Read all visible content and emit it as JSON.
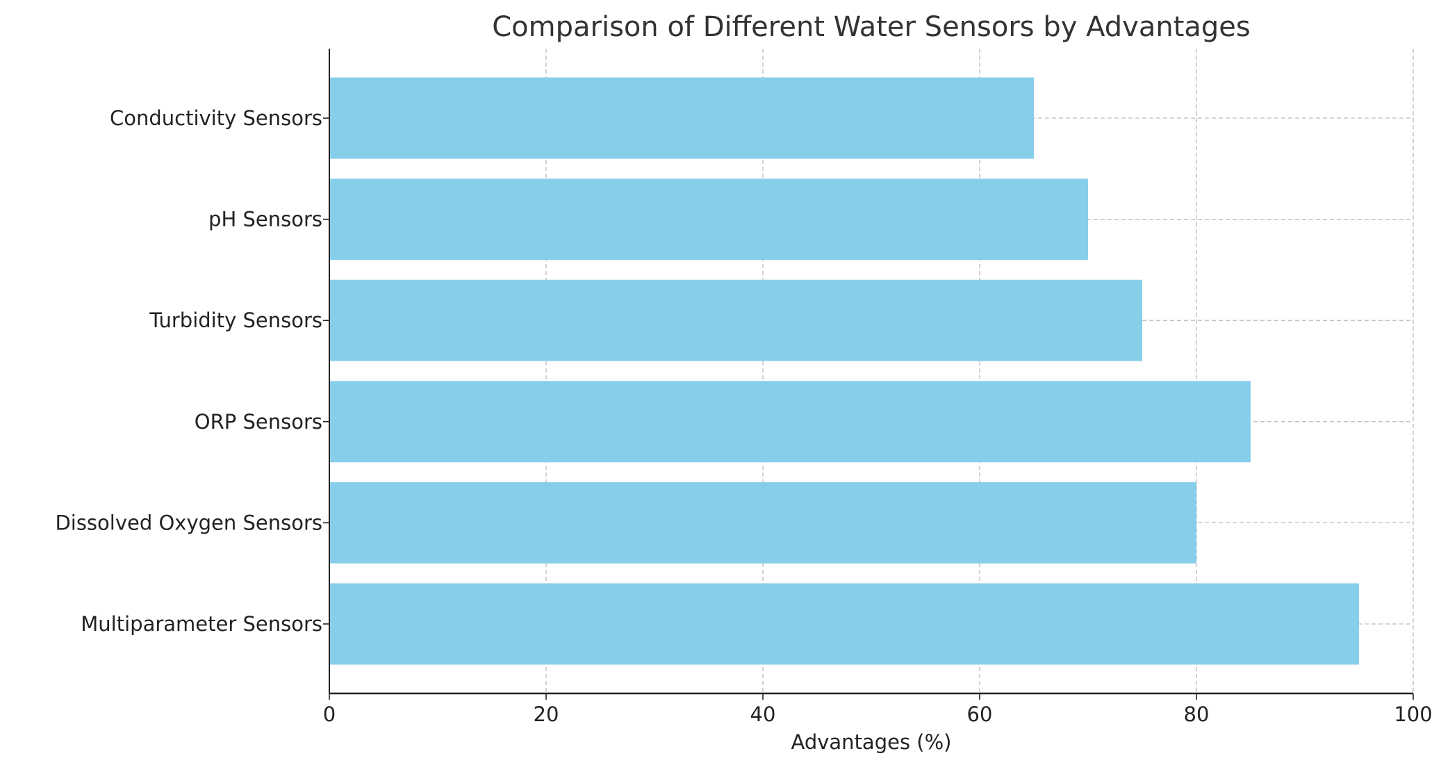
{
  "chart_data": {
    "type": "bar",
    "orientation": "horizontal",
    "title": "Comparison of Different Water Sensors by Advantages",
    "xlabel": "Advantages (%)",
    "ylabel": "",
    "categories": [
      "Conductivity Sensors",
      "pH Sensors",
      "Turbidity Sensors",
      "ORP Sensors",
      "Dissolved Oxygen Sensors",
      "Multiparameter Sensors"
    ],
    "values": [
      65,
      70,
      75,
      85,
      80,
      95
    ],
    "xlim": [
      0,
      100
    ],
    "xticks": [
      0,
      20,
      40,
      60,
      80,
      100
    ],
    "grid": true,
    "bar_color": "#87CEEB"
  }
}
